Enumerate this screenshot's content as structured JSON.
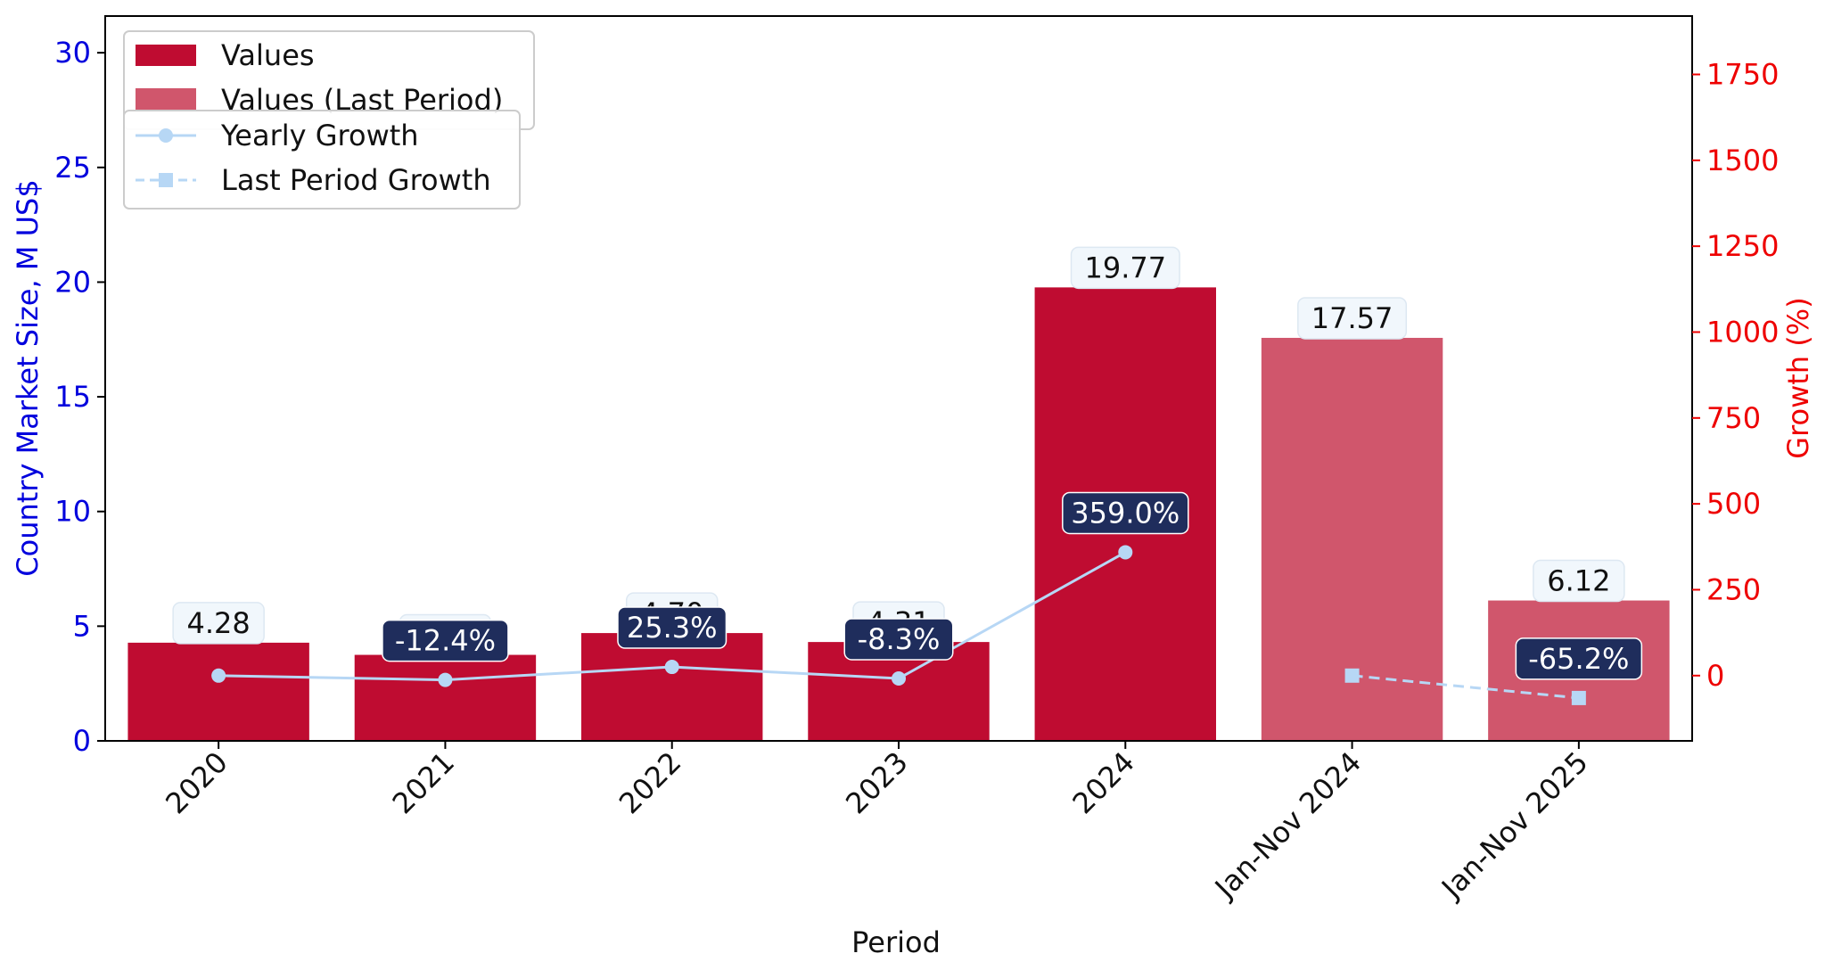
{
  "chart_data": {
    "type": "bar",
    "categories": [
      "2020",
      "2021",
      "2022",
      "2023",
      "2024",
      "Jan-Nov 2024",
      "Jan-Nov 2025"
    ],
    "values": [
      4.28,
      3.75,
      4.7,
      4.31,
      19.77,
      17.57,
      6.12
    ],
    "value_labels": [
      "4.28",
      "3.75",
      "4.70",
      "4.31",
      "19.77",
      "17.57",
      "6.12"
    ],
    "bar_kinds": [
      "values",
      "values",
      "values",
      "values",
      "values",
      "last_period",
      "last_period"
    ],
    "xlabel": "Period",
    "ylabel": "Country Market Size, M US$",
    "y2label": "Growth (%)",
    "ylim": [
      0,
      31.6
    ],
    "y2lim": [
      -190,
      1920
    ],
    "yticks": [
      0,
      5,
      10,
      15,
      20,
      25,
      30
    ],
    "y2ticks": [
      0,
      250,
      500,
      750,
      1000,
      1250,
      1500,
      1750
    ],
    "yearly_growth": {
      "name": "Yearly Growth",
      "x_index": [
        0,
        1,
        2,
        3,
        4
      ],
      "values": [
        0,
        -12.4,
        25.3,
        -8.3,
        359.0
      ],
      "labels": [
        "",
        "-12.4%",
        "25.3%",
        "-8.3%",
        "359.0%"
      ]
    },
    "last_period_growth": {
      "name": "Last Period Growth",
      "x_index": [
        5,
        6
      ],
      "values": [
        0,
        -65.2
      ],
      "labels": [
        "",
        "-65.2%"
      ]
    },
    "legend": {
      "placement": "top-left",
      "bars": [
        "Values",
        "Values (Last Period)"
      ],
      "lines": [
        "Yearly Growth",
        "Last Period Growth"
      ]
    },
    "grid": false,
    "colors": {
      "values_bar": "#bf0c31",
      "last_period_bar": "#d0566c",
      "growth_line": "#b7d7f5",
      "left_axis": "#0000dd",
      "right_axis": "#ee0000",
      "growth_label_bg": "#1f2d5c",
      "value_label_bg": "#f1f7fc"
    }
  }
}
